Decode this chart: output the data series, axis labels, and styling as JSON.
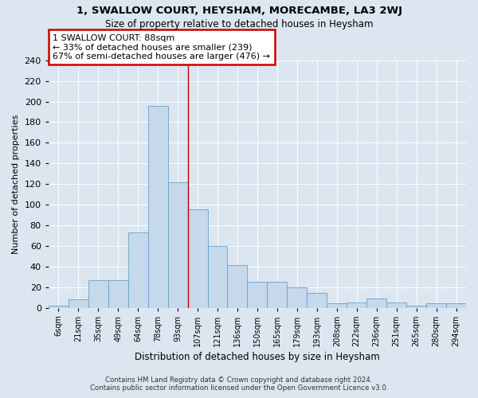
{
  "title": "1, SWALLOW COURT, HEYSHAM, MORECAMBE, LA3 2WJ",
  "subtitle": "Size of property relative to detached houses in Heysham",
  "xlabel": "Distribution of detached houses by size in Heysham",
  "ylabel": "Number of detached properties",
  "categories": [
    "6sqm",
    "21sqm",
    "35sqm",
    "49sqm",
    "64sqm",
    "78sqm",
    "93sqm",
    "107sqm",
    "121sqm",
    "136sqm",
    "150sqm",
    "165sqm",
    "179sqm",
    "193sqm",
    "208sqm",
    "222sqm",
    "236sqm",
    "251sqm",
    "265sqm",
    "280sqm",
    "294sqm"
  ],
  "values": [
    2,
    8,
    27,
    27,
    73,
    196,
    122,
    95,
    60,
    41,
    25,
    25,
    20,
    14,
    4,
    5,
    9,
    5,
    2,
    4,
    4
  ],
  "bar_color": "#c5d8ec",
  "bar_edge_color": "#6b9fc8",
  "annotation_text": "1 SWALLOW COURT: 88sqm\n← 33% of detached houses are smaller (239)\n67% of semi-detached houses are larger (476) →",
  "annotation_box_color": "#ffffff",
  "annotation_box_edge": "#cc0000",
  "vline_color": "#cc0000",
  "footer1": "Contains HM Land Registry data © Crown copyright and database right 2024.",
  "footer2": "Contains public sector information licensed under the Open Government Licence v3.0.",
  "background_color": "#dce6f0",
  "ylim": [
    0,
    240
  ],
  "yticks": [
    0,
    20,
    40,
    60,
    80,
    100,
    120,
    140,
    160,
    180,
    200,
    220,
    240
  ],
  "vline_index": 6.5
}
